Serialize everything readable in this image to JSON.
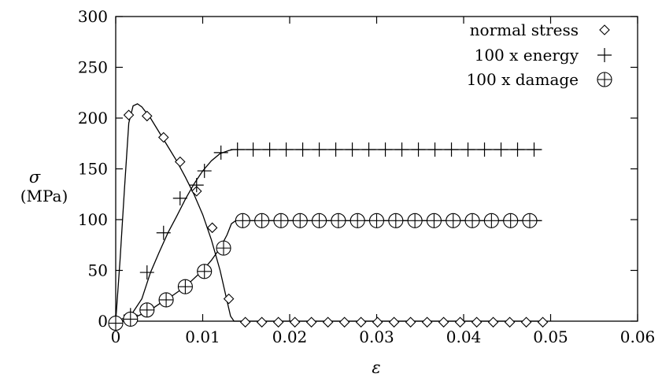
{
  "chart_data": {
    "type": "line",
    "title": "",
    "xlabel": "ε",
    "ylabel": "σ",
    "yunit": "(MPa)",
    "xlim": [
      0,
      0.06
    ],
    "ylim": [
      0,
      300
    ],
    "xticks": [
      0,
      0.01,
      0.02,
      0.03,
      0.04,
      0.05,
      0.06
    ],
    "xtick_labels": [
      "0",
      "0.01",
      "0.02",
      "0.03",
      "0.04",
      "0.05",
      "0.06"
    ],
    "yticks": [
      0,
      50,
      100,
      150,
      200,
      250,
      300
    ],
    "ytick_labels": [
      "0",
      "50",
      "100",
      "150",
      "200",
      "250",
      "300"
    ],
    "grid": false,
    "legend_position": "top-right",
    "series": [
      {
        "name": "normal stress",
        "marker": "diamond",
        "curve": [
          [
            0,
            0
          ],
          [
            0.0005,
            60
          ],
          [
            0.001,
            130
          ],
          [
            0.0015,
            195
          ],
          [
            0.002,
            212
          ],
          [
            0.0025,
            214
          ],
          [
            0.003,
            211
          ],
          [
            0.004,
            200
          ],
          [
            0.005,
            186
          ],
          [
            0.006,
            172
          ],
          [
            0.007,
            158
          ],
          [
            0.008,
            142
          ],
          [
            0.009,
            125
          ],
          [
            0.01,
            105
          ],
          [
            0.011,
            80
          ],
          [
            0.012,
            50
          ],
          [
            0.0128,
            20
          ],
          [
            0.0132,
            5
          ],
          [
            0.0136,
            0
          ],
          [
            0.049,
            0
          ]
        ],
        "points": [
          [
            0,
            -1
          ],
          [
            0.0015,
            203
          ],
          [
            0.0036,
            202
          ],
          [
            0.0055,
            181
          ],
          [
            0.0074,
            157
          ],
          [
            0.0093,
            128
          ],
          [
            0.0111,
            92
          ],
          [
            0.013,
            22
          ],
          [
            0.0149,
            -1
          ],
          [
            0.0168,
            -1
          ],
          [
            0.0187,
            -1
          ],
          [
            0.0206,
            -1
          ],
          [
            0.0225,
            -1
          ],
          [
            0.0244,
            -1
          ],
          [
            0.0263,
            -1
          ],
          [
            0.0282,
            -1
          ],
          [
            0.0301,
            -1
          ],
          [
            0.032,
            -1
          ],
          [
            0.0339,
            -1
          ],
          [
            0.0358,
            -1
          ],
          [
            0.0377,
            -1
          ],
          [
            0.0396,
            -1
          ],
          [
            0.0415,
            -1
          ],
          [
            0.0434,
            -1
          ],
          [
            0.0453,
            -1
          ],
          [
            0.0472,
            -1
          ],
          [
            0.0491,
            -1
          ]
        ]
      },
      {
        "name": "100 x energy",
        "marker": "plus",
        "curve": [
          [
            0,
            0
          ],
          [
            0.001,
            3
          ],
          [
            0.002,
            9
          ],
          [
            0.003,
            22
          ],
          [
            0.004,
            48
          ],
          [
            0.005,
            68
          ],
          [
            0.006,
            87
          ],
          [
            0.007,
            103
          ],
          [
            0.008,
            120
          ],
          [
            0.009,
            135
          ],
          [
            0.01,
            148
          ],
          [
            0.011,
            158
          ],
          [
            0.012,
            165
          ],
          [
            0.013,
            168
          ],
          [
            0.0135,
            169
          ],
          [
            0.049,
            169
          ]
        ],
        "points": [
          [
            0,
            -1
          ],
          [
            0.0017,
            6
          ],
          [
            0.0036,
            48
          ],
          [
            0.0055,
            87
          ],
          [
            0.0074,
            121
          ],
          [
            0.0093,
            134
          ],
          [
            0.0102,
            148
          ],
          [
            0.0121,
            166
          ],
          [
            0.014,
            169
          ],
          [
            0.0158,
            169
          ],
          [
            0.0177,
            169
          ],
          [
            0.0196,
            169
          ],
          [
            0.0215,
            169
          ],
          [
            0.0234,
            169
          ],
          [
            0.0253,
            169
          ],
          [
            0.0272,
            169
          ],
          [
            0.0291,
            169
          ],
          [
            0.031,
            169
          ],
          [
            0.0329,
            169
          ],
          [
            0.0348,
            169
          ],
          [
            0.0367,
            169
          ],
          [
            0.0386,
            169
          ],
          [
            0.0405,
            169
          ],
          [
            0.0424,
            169
          ],
          [
            0.0443,
            169
          ],
          [
            0.0462,
            169
          ],
          [
            0.0481,
            169
          ]
        ]
      },
      {
        "name": "100 x damage",
        "marker": "circle-plus",
        "curve": [
          [
            0,
            0
          ],
          [
            0.0015,
            1
          ],
          [
            0.002,
            3
          ],
          [
            0.003,
            7
          ],
          [
            0.004,
            11
          ],
          [
            0.005,
            17
          ],
          [
            0.006,
            22
          ],
          [
            0.007,
            28
          ],
          [
            0.008,
            34
          ],
          [
            0.009,
            42
          ],
          [
            0.01,
            50
          ],
          [
            0.011,
            60
          ],
          [
            0.012,
            72
          ],
          [
            0.0128,
            85
          ],
          [
            0.0133,
            96
          ],
          [
            0.0138,
            99
          ],
          [
            0.049,
            99
          ]
        ],
        "points": [
          [
            0,
            -2
          ],
          [
            0.0017,
            2
          ],
          [
            0.0036,
            11
          ],
          [
            0.0058,
            21
          ],
          [
            0.008,
            34
          ],
          [
            0.0102,
            49
          ],
          [
            0.0124,
            72
          ],
          [
            0.0146,
            99
          ],
          [
            0.0168,
            99
          ],
          [
            0.019,
            99
          ],
          [
            0.0212,
            99
          ],
          [
            0.0234,
            99
          ],
          [
            0.0256,
            99
          ],
          [
            0.0278,
            99
          ],
          [
            0.03,
            99
          ],
          [
            0.0322,
            99
          ],
          [
            0.0344,
            99
          ],
          [
            0.0366,
            99
          ],
          [
            0.0388,
            99
          ],
          [
            0.041,
            99
          ],
          [
            0.0432,
            99
          ],
          [
            0.0454,
            99
          ],
          [
            0.0476,
            99
          ]
        ]
      }
    ]
  }
}
